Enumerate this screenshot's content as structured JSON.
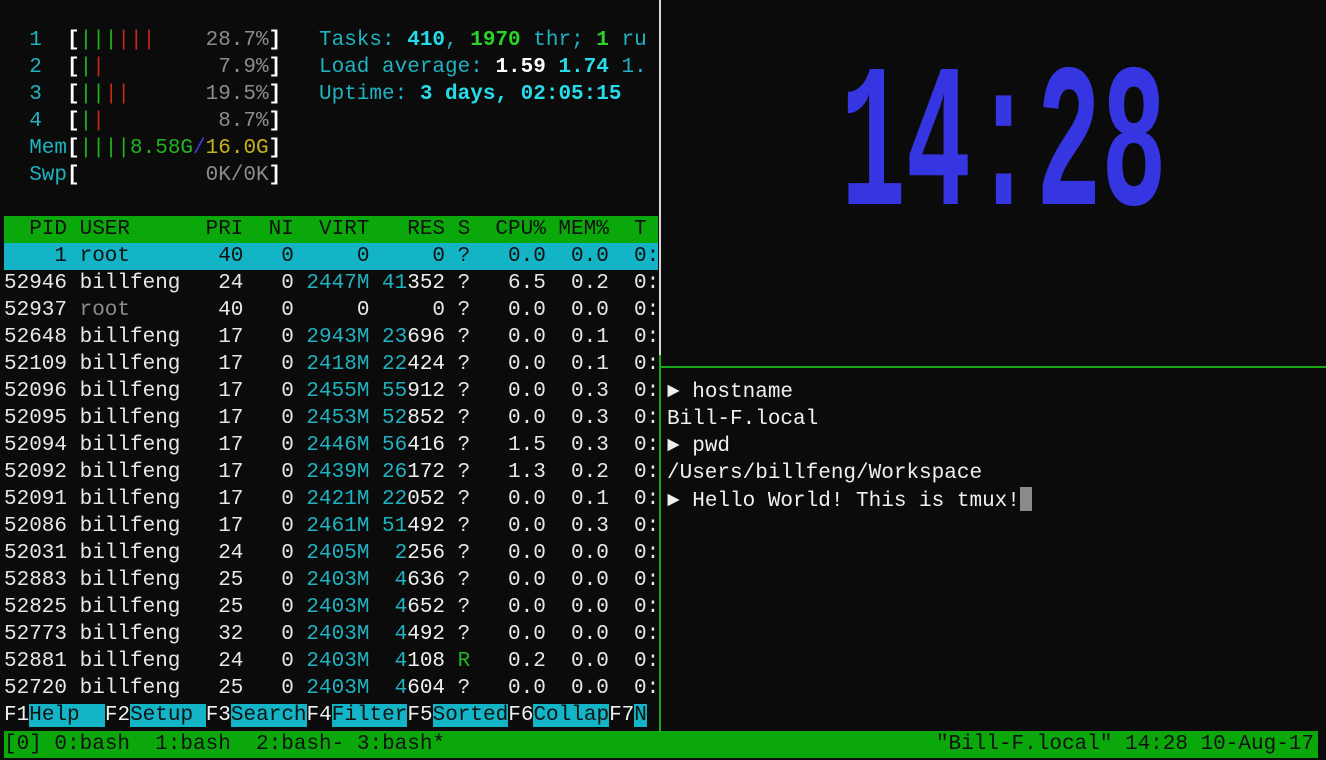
{
  "colors": {
    "clock": "#3535e2",
    "accent_green": "#0aa80a",
    "accent_cyan": "#12b4c6"
  },
  "meters": [
    {
      "label": "1",
      "bars": [
        {
          "text": "|||",
          "color": "green"
        },
        {
          "text": "|||",
          "color": "red"
        }
      ],
      "value": "28.7%"
    },
    {
      "label": "2",
      "bars": [
        {
          "text": "|",
          "color": "green"
        },
        {
          "text": "|",
          "color": "red"
        }
      ],
      "value": "7.9%"
    },
    {
      "label": "3",
      "bars": [
        {
          "text": "||",
          "color": "green"
        },
        {
          "text": "||",
          "color": "red"
        }
      ],
      "value": "19.5%"
    },
    {
      "label": "4",
      "bars": [
        {
          "text": "|",
          "color": "green"
        },
        {
          "text": "|",
          "color": "red"
        }
      ],
      "value": "8.7%"
    }
  ],
  "mem": {
    "label": "Mem",
    "bars": "||||",
    "used": "8.58G",
    "sep": "/",
    "total": "16.0G"
  },
  "swp": {
    "label": "Swp",
    "value": "0K/0K"
  },
  "tasks": {
    "label": "Tasks: ",
    "count": "410",
    "sep": ", ",
    "threads": "1970",
    "thr_label": " thr; ",
    "running": "1",
    "run_label": " ru"
  },
  "load": {
    "label": "Load average: ",
    "l1": "1.59",
    "l5": "1.74",
    "l15": "1."
  },
  "uptime": {
    "label": "Uptime: ",
    "value": "3 days, 02:05:15"
  },
  "table": {
    "columns": [
      "PID",
      "USER",
      "PRI",
      "NI",
      "VIRT",
      "RES",
      "S",
      "CPU%",
      "MEM%",
      "T"
    ],
    "rows": [
      {
        "pid": "1",
        "user": "root",
        "pri": "40",
        "ni": "0",
        "virt": "0",
        "res": "0",
        "s": "?",
        "cpu": "0.0",
        "mem": "0.0",
        "time": "0:",
        "selected": true
      },
      {
        "pid": "52946",
        "user": "billfeng",
        "pri": "24",
        "ni": "0",
        "virt": "2447M",
        "res": "41352",
        "s": "?",
        "cpu": "6.5",
        "mem": "0.2",
        "time": "0:"
      },
      {
        "pid": "52937",
        "user": "root",
        "pri": "40",
        "ni": "0",
        "virt": "0",
        "res": "0",
        "s": "?",
        "cpu": "0.0",
        "mem": "0.0",
        "time": "0:",
        "dim_user": true
      },
      {
        "pid": "52648",
        "user": "billfeng",
        "pri": "17",
        "ni": "0",
        "virt": "2943M",
        "res": "23696",
        "s": "?",
        "cpu": "0.0",
        "mem": "0.1",
        "time": "0:"
      },
      {
        "pid": "52109",
        "user": "billfeng",
        "pri": "17",
        "ni": "0",
        "virt": "2418M",
        "res": "22424",
        "s": "?",
        "cpu": "0.0",
        "mem": "0.1",
        "time": "0:"
      },
      {
        "pid": "52096",
        "user": "billfeng",
        "pri": "17",
        "ni": "0",
        "virt": "2455M",
        "res": "55912",
        "s": "?",
        "cpu": "0.0",
        "mem": "0.3",
        "time": "0:"
      },
      {
        "pid": "52095",
        "user": "billfeng",
        "pri": "17",
        "ni": "0",
        "virt": "2453M",
        "res": "52852",
        "s": "?",
        "cpu": "0.0",
        "mem": "0.3",
        "time": "0:"
      },
      {
        "pid": "52094",
        "user": "billfeng",
        "pri": "17",
        "ni": "0",
        "virt": "2446M",
        "res": "56416",
        "s": "?",
        "cpu": "1.5",
        "mem": "0.3",
        "time": "0:"
      },
      {
        "pid": "52092",
        "user": "billfeng",
        "pri": "17",
        "ni": "0",
        "virt": "2439M",
        "res": "26172",
        "s": "?",
        "cpu": "1.3",
        "mem": "0.2",
        "time": "0:"
      },
      {
        "pid": "52091",
        "user": "billfeng",
        "pri": "17",
        "ni": "0",
        "virt": "2421M",
        "res": "22052",
        "s": "?",
        "cpu": "0.0",
        "mem": "0.1",
        "time": "0:"
      },
      {
        "pid": "52086",
        "user": "billfeng",
        "pri": "17",
        "ni": "0",
        "virt": "2461M",
        "res": "51492",
        "s": "?",
        "cpu": "0.0",
        "mem": "0.3",
        "time": "0:"
      },
      {
        "pid": "52031",
        "user": "billfeng",
        "pri": "24",
        "ni": "0",
        "virt": "2405M",
        "res": "2256",
        "s": "?",
        "cpu": "0.0",
        "mem": "0.0",
        "time": "0:"
      },
      {
        "pid": "52883",
        "user": "billfeng",
        "pri": "25",
        "ni": "0",
        "virt": "2403M",
        "res": "4636",
        "s": "?",
        "cpu": "0.0",
        "mem": "0.0",
        "time": "0:"
      },
      {
        "pid": "52825",
        "user": "billfeng",
        "pri": "25",
        "ni": "0",
        "virt": "2403M",
        "res": "4652",
        "s": "?",
        "cpu": "0.0",
        "mem": "0.0",
        "time": "0:"
      },
      {
        "pid": "52773",
        "user": "billfeng",
        "pri": "32",
        "ni": "0",
        "virt": "2403M",
        "res": "4492",
        "s": "?",
        "cpu": "0.0",
        "mem": "0.0",
        "time": "0:"
      },
      {
        "pid": "52881",
        "user": "billfeng",
        "pri": "24",
        "ni": "0",
        "virt": "2403M",
        "res": "4108",
        "s": "R",
        "cpu": "0.2",
        "mem": "0.0",
        "time": "0:"
      },
      {
        "pid": "52720",
        "user": "billfeng",
        "pri": "25",
        "ni": "0",
        "virt": "2403M",
        "res": "4604",
        "s": "?",
        "cpu": "0.0",
        "mem": "0.0",
        "time": "0:"
      }
    ]
  },
  "function_keys": [
    {
      "key": "F1",
      "label": "Help  "
    },
    {
      "key": "F2",
      "label": "Setup "
    },
    {
      "key": "F3",
      "label": "Search"
    },
    {
      "key": "F4",
      "label": "Filter"
    },
    {
      "key": "F5",
      "label": "Sorted"
    },
    {
      "key": "F6",
      "label": "Collap"
    },
    {
      "key": "F7",
      "label": "N"
    }
  ],
  "clock": {
    "time": "14:28"
  },
  "shell": {
    "prompt": "►",
    "lines": [
      {
        "type": "cmd",
        "text": "hostname"
      },
      {
        "type": "out",
        "text": "Bill-F.local"
      },
      {
        "type": "cmd",
        "text": "pwd"
      },
      {
        "type": "out",
        "text": "/Users/billfeng/Workspace"
      },
      {
        "type": "cmd",
        "text": "Hello World! This is tmux!",
        "cursor": true
      }
    ]
  },
  "status_bar": {
    "session": "[0]",
    "windows": " 0:bash  1:bash  2:bash- 3:bash*",
    "right": "\"Bill-F.local\" 14:28 10-Aug-17"
  }
}
